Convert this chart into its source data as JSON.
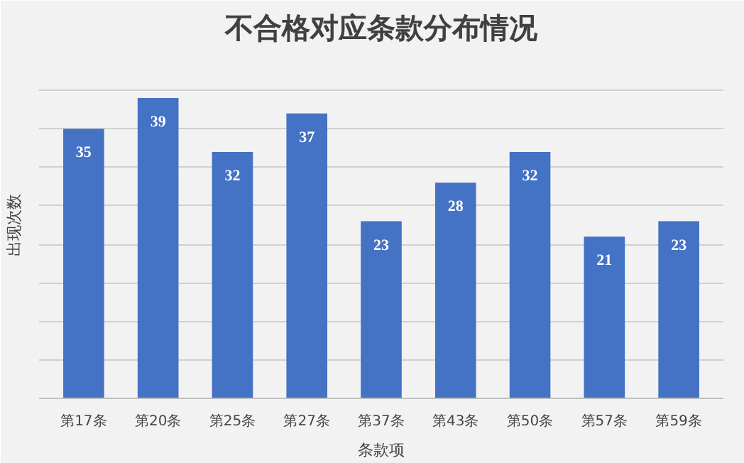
{
  "chart_data": {
    "type": "bar",
    "title": "不合格对应条款分布情况",
    "xlabel": "条款项",
    "ylabel": "出现次数",
    "categories": [
      "第17条",
      "第20条",
      "第25条",
      "第27条",
      "第37条",
      "第43条",
      "第50条",
      "第57条",
      "第59条"
    ],
    "values": [
      35,
      39,
      32,
      37,
      23,
      28,
      32,
      21,
      23
    ],
    "color": "#4472c4",
    "data_labels": true,
    "grid": "y",
    "ylim": [
      0,
      45
    ],
    "yticks": [
      {
        "value": 0,
        "label": null
      },
      {
        "value": 5,
        "label": null
      },
      {
        "value": 10,
        "label": null
      },
      {
        "value": 15,
        "label": null
      },
      {
        "value": 20,
        "label": null
      },
      {
        "value": 25,
        "label": null
      },
      {
        "value": 30,
        "label": null
      },
      {
        "value": 35,
        "label": null
      },
      {
        "value": 40,
        "label": null
      },
      {
        "value": 45,
        "label": null
      }
    ],
    "tick_labels": "x"
  }
}
